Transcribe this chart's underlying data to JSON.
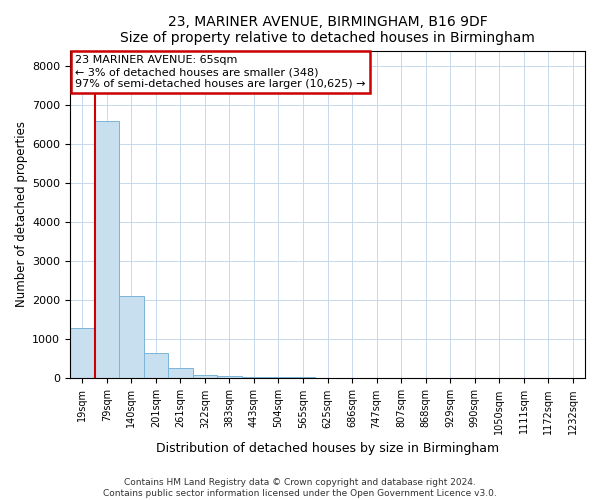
{
  "title1": "23, MARINER AVENUE, BIRMINGHAM, B16 9DF",
  "title2": "Size of property relative to detached houses in Birmingham",
  "xlabel": "Distribution of detached houses by size in Birmingham",
  "ylabel": "Number of detached properties",
  "annotation_line1": "23 MARINER AVENUE: 65sqm",
  "annotation_line2": "← 3% of detached houses are smaller (348)",
  "annotation_line3": "97% of semi-detached houses are larger (10,625) →",
  "bar_color": "#c8dff0",
  "bar_edge_color": "#7ab5d8",
  "highlight_color": "#cc0000",
  "categories": [
    "19sqm",
    "79sqm",
    "140sqm",
    "201sqm",
    "261sqm",
    "322sqm",
    "383sqm",
    "443sqm",
    "504sqm",
    "565sqm",
    "625sqm",
    "686sqm",
    "747sqm",
    "807sqm",
    "868sqm",
    "929sqm",
    "990sqm",
    "1050sqm",
    "1111sqm",
    "1172sqm",
    "1232sqm"
  ],
  "values": [
    1300,
    6600,
    2100,
    650,
    280,
    100,
    60,
    40,
    30,
    25,
    20,
    10,
    5,
    3,
    2,
    1,
    1,
    0,
    0,
    0,
    0
  ],
  "ylim": [
    0,
    8400
  ],
  "yticks": [
    0,
    1000,
    2000,
    3000,
    4000,
    5000,
    6000,
    7000,
    8000
  ],
  "footnote1": "Contains HM Land Registry data © Crown copyright and database right 2024.",
  "footnote2": "Contains public sector information licensed under the Open Government Licence v3.0."
}
